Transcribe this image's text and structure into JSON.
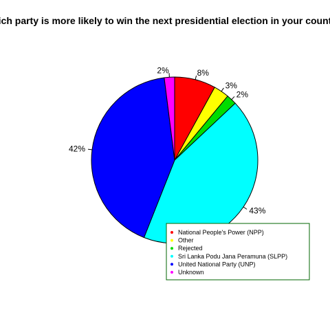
{
  "chart_data": {
    "type": "pie",
    "title": "Which party is more likely to win the next presidential election in your country?",
    "slices": [
      {
        "label": "National People's Power (NPP)",
        "value": 8,
        "display": "8%",
        "color": "#ff0000"
      },
      {
        "label": "Other",
        "value": 3,
        "display": "3%",
        "color": "#ffff00"
      },
      {
        "label": "Rejected",
        "value": 2,
        "display": "2%",
        "color": "#00dd00"
      },
      {
        "label": "Sri Lanka Podu Jana Peramuna (SLPP)",
        "value": 43,
        "display": "43%",
        "color": "#00ffff"
      },
      {
        "label": "United National Party (UNP)",
        "value": 42,
        "display": "42%",
        "color": "#0000ff"
      },
      {
        "label": "Unknown",
        "value": 2,
        "display": "2%",
        "color": "#ff00ff"
      }
    ],
    "legend_position": "bottom-right",
    "legend_border_color": "#006400"
  }
}
